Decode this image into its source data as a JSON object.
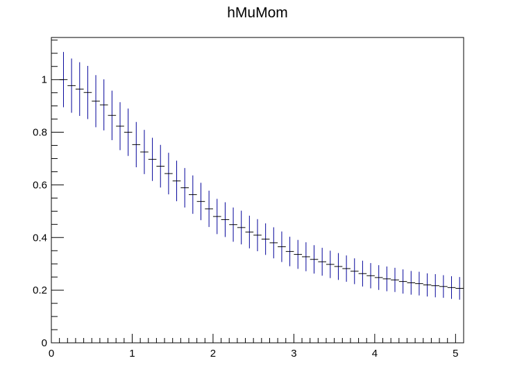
{
  "chart_data": {
    "type": "histogram-errorbar",
    "title": "hMuMom",
    "xlabel": "",
    "ylabel": "",
    "xlim": [
      0,
      5.1
    ],
    "ylim": [
      0,
      1.16
    ],
    "grid": false,
    "legend": "none",
    "x_ticks": [
      "0",
      "1",
      "2",
      "3",
      "4",
      "5"
    ],
    "y_ticks": [
      "0",
      "0.2",
      "0.4",
      "0.6",
      "0.8",
      "1"
    ],
    "bin_width": 0.1,
    "series": [
      {
        "x": [
          0.15,
          0.25,
          0.35,
          0.45,
          0.55,
          0.65,
          0.75,
          0.85,
          0.95,
          1.05,
          1.15,
          1.25,
          1.35,
          1.45,
          1.55,
          1.65,
          1.75,
          1.85,
          1.95,
          2.05,
          2.15,
          2.25,
          2.35,
          2.45,
          2.55,
          2.65,
          2.75,
          2.85,
          2.95,
          3.05,
          3.15,
          3.25,
          3.35,
          3.45,
          3.55,
          3.65,
          3.75,
          3.85,
          3.95,
          4.05,
          4.15,
          4.25,
          4.35,
          4.45,
          4.55,
          4.65,
          4.75,
          4.85,
          4.95,
          5.05
        ],
        "y": [
          1.0,
          0.977,
          0.964,
          0.951,
          0.918,
          0.904,
          0.864,
          0.823,
          0.8,
          0.753,
          0.725,
          0.697,
          0.671,
          0.643,
          0.615,
          0.589,
          0.563,
          0.537,
          0.509,
          0.48,
          0.468,
          0.449,
          0.438,
          0.421,
          0.409,
          0.394,
          0.38,
          0.365,
          0.347,
          0.336,
          0.327,
          0.317,
          0.308,
          0.298,
          0.29,
          0.282,
          0.272,
          0.263,
          0.255,
          0.248,
          0.243,
          0.239,
          0.233,
          0.228,
          0.225,
          0.22,
          0.217,
          0.214,
          0.21,
          0.207
        ],
        "err": [
          0.105,
          0.103,
          0.102,
          0.101,
          0.099,
          0.097,
          0.094,
          0.091,
          0.09,
          0.086,
          0.084,
          0.082,
          0.081,
          0.079,
          0.077,
          0.075,
          0.073,
          0.071,
          0.069,
          0.067,
          0.066,
          0.065,
          0.064,
          0.062,
          0.061,
          0.06,
          0.059,
          0.058,
          0.056,
          0.055,
          0.055,
          0.054,
          0.053,
          0.052,
          0.051,
          0.05,
          0.049,
          0.049,
          0.048,
          0.047,
          0.047,
          0.046,
          0.046,
          0.045,
          0.045,
          0.044,
          0.044,
          0.043,
          0.043,
          0.043
        ]
      }
    ],
    "colors": {
      "errorbar": "#000099",
      "marker": "#000000",
      "axis": "#000000"
    }
  }
}
